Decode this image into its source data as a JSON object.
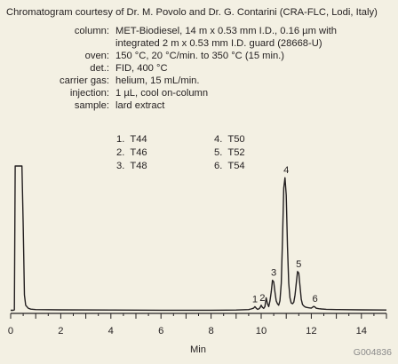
{
  "courtesy": "Chromatogram courtesy of Dr. M. Povolo and Dr. G. Contarini (CRA-FLC, Lodi, Italy)",
  "conditions": [
    {
      "label": "column:",
      "value": "MET-Biodiesel, 14 m x 0.53 mm I.D., 0.16 µm with"
    },
    {
      "label": "",
      "value": "integrated 2 m x 0.53 mm I.D. guard (28668-U)"
    },
    {
      "label": "oven:",
      "value": "150 °C, 20 °C/min. to 350 °C (15 min.)"
    },
    {
      "label": "det.:",
      "value": "FID, 400 °C"
    },
    {
      "label": "carrier gas:",
      "value": "helium, 15 mL/min."
    },
    {
      "label": "injection:",
      "value": "1 µL, cool on-column"
    },
    {
      "label": "sample:",
      "value": "lard extract"
    }
  ],
  "peak_list": [
    {
      "num": "1.",
      "name": "T44"
    },
    {
      "num": "2.",
      "name": "T46"
    },
    {
      "num": "3.",
      "name": "T48"
    },
    {
      "num": "4.",
      "name": "T50"
    },
    {
      "num": "5.",
      "name": "T52"
    },
    {
      "num": "6.",
      "name": "T54"
    }
  ],
  "figure_code": "G004836",
  "colors": {
    "background": "#f3f0e3",
    "trace": "#231f20",
    "code": "#8a8a8a"
  },
  "chart_data": {
    "type": "line",
    "title": "",
    "xlabel": "Min",
    "ylabel": "",
    "xlim": [
      0,
      15
    ],
    "xticks": [
      0,
      2,
      4,
      6,
      8,
      10,
      12,
      14
    ],
    "ylim": [
      0,
      100
    ],
    "grid": false,
    "series": [
      {
        "x": [
          0,
          0.1,
          0.15,
          0.18,
          0.2,
          0.25,
          0.3,
          0.35,
          0.4,
          0.45,
          0.5,
          0.55,
          0.6,
          0.7,
          0.8,
          1.0,
          2.0,
          4.0,
          6.0,
          8.0,
          9.0,
          9.5,
          9.6,
          9.7,
          9.75,
          9.8,
          9.85,
          9.9,
          9.95,
          10.0,
          10.05,
          10.1,
          10.15,
          10.2,
          10.25,
          10.3,
          10.35,
          10.4,
          10.45,
          10.5,
          10.55,
          10.6,
          10.65,
          10.7,
          10.75,
          10.8,
          10.85,
          10.9,
          10.95,
          11.0,
          11.05,
          11.1,
          11.15,
          11.2,
          11.25,
          11.3,
          11.35,
          11.4,
          11.45,
          11.5,
          11.55,
          11.6,
          11.65,
          11.7,
          11.75,
          11.8,
          11.9,
          12.0,
          12.05,
          12.1,
          12.15,
          12.2,
          12.3,
          12.4,
          12.6,
          13.0,
          14.0,
          15.0
        ],
        "y": [
          1.5,
          1.5,
          1.8,
          100,
          100,
          100,
          100,
          100,
          100,
          100,
          60,
          12,
          5,
          3,
          2.3,
          2,
          1.8,
          1.7,
          1.6,
          1.6,
          1.7,
          2,
          2.4,
          3,
          4,
          3,
          2.2,
          2.4,
          3.2,
          5,
          3.5,
          2.8,
          4,
          10,
          6,
          4,
          8,
          14,
          22,
          21,
          14,
          8,
          6,
          5,
          8,
          20,
          50,
          85,
          92,
          80,
          45,
          20,
          10,
          6.5,
          6,
          7,
          12,
          20,
          28,
          27,
          18,
          9,
          5.5,
          4.5,
          3.8,
          3.5,
          3.2,
          3,
          3.6,
          4.2,
          3.7,
          2.9,
          2.6,
          2.4,
          2.2,
          2,
          1.8,
          1.7
        ]
      }
    ],
    "peak_labels": [
      {
        "text": "1",
        "x": 9.75,
        "y": 4
      },
      {
        "text": "2",
        "x": 10.05,
        "y": 5
      },
      {
        "text": "3",
        "x": 10.5,
        "y": 22
      },
      {
        "text": "4",
        "x": 11.0,
        "y": 92
      },
      {
        "text": "5",
        "x": 11.5,
        "y": 28
      },
      {
        "text": "6",
        "x": 12.15,
        "y": 4.2
      }
    ]
  }
}
